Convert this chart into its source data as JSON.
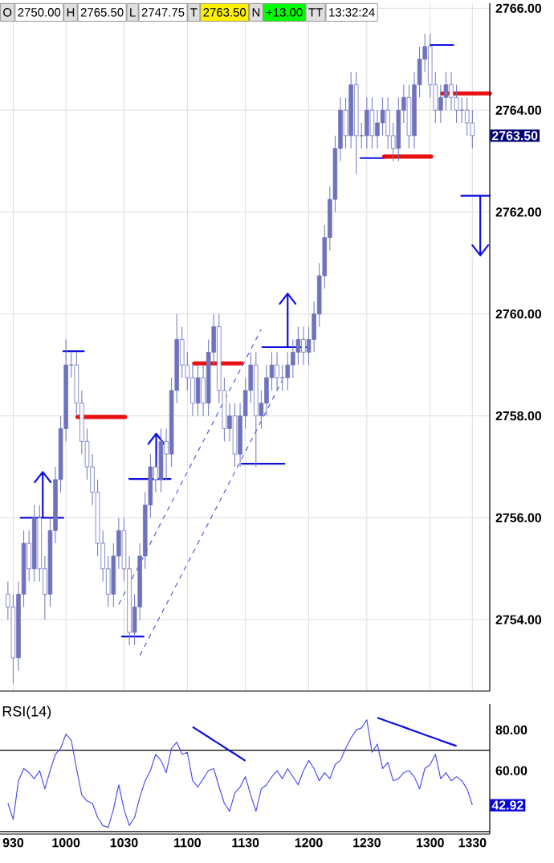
{
  "chart_data": [
    {
      "type": "candlestick",
      "color": "#6f73bd",
      "annotations": [
        "O",
        "2750.00",
        "H",
        "2765.50",
        "L",
        "2747.75",
        "T",
        "2763.50",
        "N",
        "+13.00",
        "TT",
        "13:32:24",
        "2763.50"
      ],
      "categories": [
        null,
        "930",
        null,
        null,
        null,
        null,
        null,
        null,
        null,
        null,
        null,
        "1000",
        null,
        null,
        null,
        null,
        null,
        null,
        null,
        null,
        null,
        null,
        "1030",
        null,
        null,
        null,
        null,
        null,
        null,
        null,
        null,
        null,
        null,
        null,
        "1100",
        null,
        null,
        null,
        null,
        null,
        null,
        null,
        null,
        null,
        null,
        "1130",
        null,
        null,
        null,
        null,
        null,
        null,
        null,
        null,
        null,
        null,
        null,
        "1200",
        null,
        null,
        null,
        null,
        null,
        null,
        null,
        null,
        null,
        null,
        "1230",
        null,
        null,
        null,
        null,
        null,
        null,
        null,
        null,
        null,
        null,
        null,
        "1300",
        null,
        null,
        null,
        null,
        null,
        null,
        null,
        "1330"
      ],
      "ohlc": [
        [
          2754.5,
          2754.75,
          2754.0,
          2754.25
        ],
        [
          2754.25,
          2754.5,
          2752.75,
          2753.25
        ],
        [
          2753.25,
          2754.75,
          2753.0,
          2754.5
        ],
        [
          2754.5,
          2755.75,
          2754.25,
          2755.5
        ],
        [
          2755.5,
          2755.75,
          2754.75,
          2755.0
        ],
        [
          2755.0,
          2756.25,
          2754.75,
          2756.0
        ],
        [
          2756.0,
          2756.25,
          2754.75,
          2755.0
        ],
        [
          2755.0,
          2755.25,
          2754.0,
          2754.5
        ],
        [
          2754.5,
          2756.0,
          2754.25,
          2755.75
        ],
        [
          2755.75,
          2757.0,
          2755.5,
          2756.75
        ],
        [
          2756.75,
          2758.0,
          2756.5,
          2757.75
        ],
        [
          2757.75,
          2759.5,
          2757.5,
          2759.0
        ],
        [
          2759.0,
          2759.25,
          2758.75,
          2759.0
        ],
        [
          2759.0,
          2759.25,
          2758.0,
          2758.25
        ],
        [
          2758.25,
          2758.5,
          2757.25,
          2757.5
        ],
        [
          2757.5,
          2757.75,
          2756.75,
          2757.0
        ],
        [
          2757.0,
          2757.25,
          2756.25,
          2756.5
        ],
        [
          2756.5,
          2756.75,
          2755.25,
          2755.5
        ],
        [
          2755.5,
          2755.75,
          2754.75,
          2755.0
        ],
        [
          2755.0,
          2755.25,
          2754.25,
          2754.5
        ],
        [
          2754.5,
          2755.5,
          2754.25,
          2755.25
        ],
        [
          2755.25,
          2756.0,
          2755.0,
          2755.75
        ],
        [
          2755.75,
          2756.0,
          2754.75,
          2755.0
        ],
        [
          2755.0,
          2755.25,
          2753.5,
          2753.75
        ],
        [
          2753.75,
          2754.5,
          2753.5,
          2754.25
        ],
        [
          2754.25,
          2755.5,
          2754.0,
          2755.25
        ],
        [
          2755.25,
          2756.5,
          2755.0,
          2756.25
        ],
        [
          2756.25,
          2757.25,
          2756.0,
          2757.0
        ],
        [
          2757.0,
          2757.25,
          2756.5,
          2756.75
        ],
        [
          2756.75,
          2757.75,
          2756.5,
          2757.5
        ],
        [
          2757.5,
          2757.75,
          2756.75,
          2757.25
        ],
        [
          2757.25,
          2758.75,
          2757.0,
          2758.5
        ],
        [
          2758.5,
          2760.0,
          2758.25,
          2759.5
        ],
        [
          2759.5,
          2759.75,
          2758.75,
          2759.0
        ],
        [
          2759.0,
          2759.25,
          2758.5,
          2758.75
        ],
        [
          2758.75,
          2759.0,
          2758.0,
          2758.25
        ],
        [
          2758.25,
          2759.0,
          2758.0,
          2758.75
        ],
        [
          2758.75,
          2759.0,
          2758.0,
          2758.25
        ],
        [
          2758.25,
          2759.5,
          2758.0,
          2759.25
        ],
        [
          2759.25,
          2760.0,
          2759.0,
          2759.75
        ],
        [
          2759.75,
          2760.0,
          2758.25,
          2758.5
        ],
        [
          2758.5,
          2758.75,
          2757.5,
          2757.75
        ],
        [
          2757.75,
          2758.25,
          2757.5,
          2758.0
        ],
        [
          2758.0,
          2758.25,
          2757.0,
          2757.25
        ],
        [
          2757.25,
          2758.25,
          2757.0,
          2758.0
        ],
        [
          2758.0,
          2758.75,
          2757.75,
          2758.5
        ],
        [
          2758.5,
          2759.25,
          2758.25,
          2759.0
        ],
        [
          2759.0,
          2759.25,
          2757.0,
          2758.0
        ],
        [
          2758.0,
          2758.5,
          2757.75,
          2758.25
        ],
        [
          2758.25,
          2759.0,
          2758.0,
          2758.75
        ],
        [
          2758.75,
          2759.25,
          2758.5,
          2759.0
        ],
        [
          2759.0,
          2759.25,
          2758.5,
          2758.75
        ],
        [
          2758.75,
          2759.0,
          2758.5,
          2758.75
        ],
        [
          2758.75,
          2759.25,
          2758.5,
          2759.0
        ],
        [
          2759.0,
          2759.5,
          2758.75,
          2759.25
        ],
        [
          2759.25,
          2759.75,
          2759.0,
          2759.5
        ],
        [
          2759.5,
          2759.75,
          2759.0,
          2759.25
        ],
        [
          2759.25,
          2759.75,
          2759.0,
          2759.5
        ],
        [
          2759.5,
          2760.25,
          2759.25,
          2760.0
        ],
        [
          2760.0,
          2761.0,
          2759.75,
          2760.75
        ],
        [
          2760.75,
          2761.75,
          2760.5,
          2761.5
        ],
        [
          2761.5,
          2762.5,
          2761.25,
          2762.25
        ],
        [
          2762.25,
          2763.5,
          2762.0,
          2763.25
        ],
        [
          2763.25,
          2764.25,
          2763.0,
          2764.0
        ],
        [
          2764.0,
          2764.25,
          2763.25,
          2763.5
        ],
        [
          2763.5,
          2764.75,
          2763.25,
          2764.5
        ],
        [
          2764.5,
          2764.75,
          2762.75,
          2763.5
        ],
        [
          2763.5,
          2763.75,
          2763.25,
          2763.5
        ],
        [
          2763.5,
          2764.25,
          2763.25,
          2764.0
        ],
        [
          2764.0,
          2764.25,
          2763.25,
          2763.5
        ],
        [
          2763.5,
          2764.0,
          2763.25,
          2763.75
        ],
        [
          2763.75,
          2764.25,
          2763.5,
          2764.0
        ],
        [
          2764.0,
          2764.25,
          2763.25,
          2763.5
        ],
        [
          2763.5,
          2763.75,
          2763.0,
          2763.25
        ],
        [
          2763.25,
          2764.25,
          2763.0,
          2764.0
        ],
        [
          2764.0,
          2764.5,
          2763.75,
          2764.25
        ],
        [
          2764.25,
          2764.5,
          2763.25,
          2763.5
        ],
        [
          2763.5,
          2764.75,
          2763.25,
          2764.5
        ],
        [
          2764.5,
          2765.25,
          2764.25,
          2765.0
        ],
        [
          2765.0,
          2765.5,
          2764.75,
          2765.25
        ],
        [
          2765.25,
          2765.5,
          2764.25,
          2764.5
        ],
        [
          2764.5,
          2764.75,
          2763.75,
          2764.0
        ],
        [
          2764.0,
          2764.5,
          2763.75,
          2764.25
        ],
        [
          2764.25,
          2764.75,
          2764.0,
          2764.5
        ],
        [
          2764.5,
          2764.75,
          2764.0,
          2764.25
        ],
        [
          2764.25,
          2764.5,
          2763.75,
          2764.0
        ],
        [
          2764.0,
          2764.25,
          2763.75,
          2764.0
        ],
        [
          2764.0,
          2764.25,
          2763.5,
          2763.75
        ],
        [
          2763.75,
          2764.0,
          2763.25,
          2763.5
        ]
      ],
      "series": [
        {
          "type": "line",
          "color": "#5a5ae0",
          "line_style": "dashed",
          "values": [
            null,
            null,
            null,
            null,
            null,
            null,
            null,
            null,
            null,
            null,
            null,
            null,
            null,
            null,
            null,
            null,
            null,
            null,
            null,
            null,
            null,
            2754.3,
            2754.5,
            2754.7,
            2754.9,
            2755.1,
            2755.3,
            2755.5,
            2755.7,
            2755.9,
            2756.1,
            2756.3,
            2756.5,
            2756.7,
            2756.9,
            2757.1,
            2757.3,
            2757.5,
            2757.7,
            2757.9,
            2758.1,
            2758.3,
            2758.5,
            2758.7,
            2758.9,
            2759.1,
            2759.3,
            2759.5,
            2759.7,
            null,
            null,
            null,
            null,
            null,
            null,
            null,
            null,
            null,
            null,
            null,
            null,
            null,
            null,
            null,
            null,
            null,
            null,
            null,
            null,
            null,
            null,
            null,
            null,
            null,
            null,
            null,
            null,
            null,
            null,
            null,
            null,
            null,
            null,
            null,
            null,
            null,
            null,
            null,
            null
          ]
        },
        {
          "type": "line",
          "color": "#5a5ae0",
          "line_style": "dashed",
          "values": [
            null,
            null,
            null,
            null,
            null,
            null,
            null,
            null,
            null,
            null,
            null,
            null,
            null,
            null,
            null,
            null,
            null,
            null,
            null,
            null,
            null,
            null,
            null,
            null,
            null,
            2753.3,
            2753.5,
            2753.7,
            2753.9,
            2754.1,
            2754.3,
            2754.5,
            2754.7,
            2754.9,
            2755.1,
            2755.3,
            2755.5,
            2755.7,
            2755.9,
            2756.1,
            2756.3,
            2756.5,
            2756.7,
            2756.9,
            2757.1,
            2757.3,
            2757.5,
            2757.7,
            2757.9,
            2758.1,
            2758.3,
            2758.5,
            2758.7,
            null,
            null,
            null,
            null,
            null,
            null,
            null,
            null,
            null,
            null,
            null,
            null,
            null,
            null,
            null,
            null,
            null,
            null,
            null,
            null,
            null,
            null,
            null,
            null,
            null,
            null,
            null,
            null,
            null,
            null,
            null,
            null,
            null,
            null,
            null,
            null
          ]
        }
      ],
      "ylim": [
        2752.6,
        2766.1
      ],
      "yticks": [
        {
          "value": 2754,
          "label": "2754.00"
        },
        {
          "value": 2756,
          "label": "2756.00"
        },
        {
          "value": 2758,
          "label": "2758.00"
        },
        {
          "value": 2760,
          "label": "2760.00"
        },
        {
          "value": 2762,
          "label": "2762.00"
        },
        {
          "value": 2764,
          "label": "2764.00"
        },
        {
          "value": 2766,
          "label": "2766.00"
        }
      ],
      "grid": true,
      "tick_labels": "y"
    },
    {
      "type": "line",
      "title": "RSI(14)",
      "annotations": [
        "42.92"
      ],
      "categories": [
        null,
        "930",
        null,
        null,
        null,
        null,
        null,
        null,
        null,
        null,
        null,
        "1000",
        null,
        null,
        null,
        null,
        null,
        null,
        null,
        null,
        null,
        null,
        "1030",
        null,
        null,
        null,
        null,
        null,
        null,
        null,
        null,
        null,
        null,
        null,
        "1100",
        null,
        null,
        null,
        null,
        null,
        null,
        null,
        null,
        null,
        null,
        "1130",
        null,
        null,
        null,
        null,
        null,
        null,
        null,
        null,
        null,
        null,
        null,
        "1200",
        null,
        null,
        null,
        null,
        null,
        null,
        null,
        null,
        null,
        null,
        "1230",
        null,
        null,
        null,
        null,
        null,
        null,
        null,
        null,
        null,
        null,
        null,
        "1300",
        null,
        null,
        null,
        null,
        null,
        null,
        null,
        "1330"
      ],
      "series": [
        {
          "color": "#5050f0",
          "values": [
            44,
            36,
            55,
            61,
            59,
            56,
            60,
            51,
            60,
            68,
            71,
            78,
            75,
            61,
            48,
            45,
            44,
            37,
            33,
            32,
            41,
            53,
            41,
            33,
            37,
            47,
            55,
            60,
            68,
            65,
            59,
            71,
            74,
            68,
            69,
            55,
            52,
            56,
            60,
            61,
            52,
            44,
            40,
            49,
            52,
            57,
            48,
            40,
            51,
            53,
            57,
            60,
            56,
            61,
            57,
            53,
            60,
            65,
            61,
            55,
            59,
            56,
            63,
            65,
            71,
            76,
            80,
            81,
            85,
            69,
            73,
            61,
            64,
            55,
            56,
            59,
            60,
            57,
            51,
            61,
            63,
            68,
            56,
            59,
            55,
            57,
            55,
            51,
            43
          ]
        },
        {
          "color": "#1010e0",
          "values": [
            null,
            null,
            null,
            null,
            null,
            null,
            null,
            null,
            null,
            null,
            null,
            null,
            null,
            null,
            null,
            null,
            null,
            null,
            null,
            null,
            null,
            null,
            null,
            null,
            null,
            null,
            null,
            null,
            null,
            null,
            null,
            null,
            null,
            null,
            null,
            81.5,
            79.8,
            78.2,
            76.5,
            74.8,
            73.2,
            71.5,
            69.8,
            68.2,
            66.5,
            64.8,
            null,
            null,
            null,
            null,
            null,
            null,
            null,
            null,
            null,
            null,
            null,
            null,
            null,
            null,
            null,
            null,
            null,
            null,
            null,
            null,
            null,
            null,
            null,
            null,
            null,
            null,
            null,
            null,
            null,
            null,
            null,
            null,
            null,
            null,
            null,
            null,
            null,
            null,
            null,
            null,
            null,
            null,
            null
          ]
        },
        {
          "color": "#1010e0",
          "values": [
            null,
            null,
            null,
            null,
            null,
            null,
            null,
            null,
            null,
            null,
            null,
            null,
            null,
            null,
            null,
            null,
            null,
            null,
            null,
            null,
            null,
            null,
            null,
            null,
            null,
            null,
            null,
            null,
            null,
            null,
            null,
            null,
            null,
            null,
            null,
            null,
            null,
            null,
            null,
            null,
            null,
            null,
            null,
            null,
            null,
            null,
            null,
            null,
            null,
            null,
            null,
            null,
            null,
            null,
            null,
            null,
            null,
            null,
            null,
            null,
            null,
            null,
            null,
            null,
            null,
            null,
            null,
            null,
            null,
            null,
            86.0,
            85.1,
            84.1,
            83.2,
            82.3,
            81.4,
            80.4,
            79.5,
            78.6,
            77.6,
            76.7,
            75.8,
            74.8,
            73.9,
            73.0,
            72.1,
            null,
            null,
            null
          ]
        }
      ],
      "ref_lines": [
        {
          "axis": "y",
          "value": 70,
          "color": "#000000"
        },
        {
          "axis": "y",
          "value": 30,
          "color": "#000000"
        }
      ],
      "ylim": [
        28.8,
        92.8
      ],
      "yticks": [
        {
          "value": 80,
          "label": "80.00"
        },
        {
          "value": 60,
          "label": "60.00"
        }
      ]
    }
  ]
}
